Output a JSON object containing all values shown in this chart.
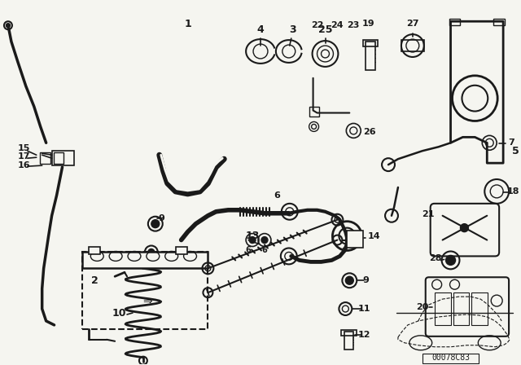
{
  "bg_color": "#f5f5f0",
  "line_color": "#1a1a1a",
  "fig_width": 6.4,
  "fig_height": 4.48,
  "dpi": 100,
  "diagram_code": "00078C83"
}
